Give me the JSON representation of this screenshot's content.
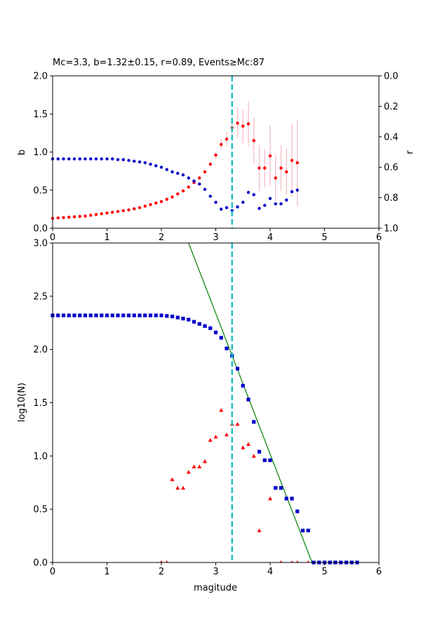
{
  "chart_data": [
    {
      "type": "scatter",
      "title": "Mc=3.3, b=1.32±0.15, r=0.89, Events≥Mc:87",
      "xlabel": "",
      "ylabel": "b",
      "ylabel_right": "r",
      "xlim": [
        0,
        6
      ],
      "ylim": [
        0,
        2.0
      ],
      "ylim_right": [
        1.0,
        0.0
      ],
      "xticks": [
        "0",
        "1",
        "2",
        "3",
        "4",
        "5",
        "6"
      ],
      "yticks": [
        "0.0",
        "0.5",
        "1.0",
        "1.5",
        "2.0"
      ],
      "yticks_right": [
        "0.0",
        "0.2",
        "0.4",
        "0.6",
        "0.8",
        "1.0"
      ],
      "grid": false,
      "mc_line": 3.3,
      "colors": {
        "b": "#ff0000",
        "r": "#0000cc",
        "err": "#f7b8c0",
        "mc": "#1fbfbf"
      },
      "series": [
        {
          "axis": "left",
          "x": [
            0.0,
            0.1,
            0.2,
            0.3,
            0.4,
            0.5,
            0.6,
            0.7,
            0.8,
            0.9,
            1.0,
            1.1,
            1.2,
            1.3,
            1.4,
            1.5,
            1.6,
            1.7,
            1.8,
            1.9,
            2.0,
            2.1,
            2.2,
            2.3,
            2.4,
            2.5,
            2.6,
            2.7,
            2.8,
            2.9,
            3.0,
            3.1,
            3.2,
            3.3,
            3.4,
            3.5,
            3.6,
            3.7,
            3.8,
            3.9,
            4.0,
            4.1,
            4.2,
            4.3,
            4.4,
            4.5
          ],
          "y": [
            0.13,
            0.135,
            0.14,
            0.145,
            0.15,
            0.155,
            0.16,
            0.17,
            0.18,
            0.19,
            0.2,
            0.21,
            0.22,
            0.23,
            0.24,
            0.255,
            0.27,
            0.29,
            0.31,
            0.33,
            0.35,
            0.38,
            0.41,
            0.45,
            0.49,
            0.54,
            0.6,
            0.66,
            0.74,
            0.84,
            0.96,
            1.1,
            1.17,
            1.32,
            1.38,
            1.34,
            1.37,
            1.15,
            0.79,
            0.79,
            0.95,
            0.66,
            0.79,
            0.74,
            0.89,
            0.86
          ],
          "err": [
            0,
            0,
            0,
            0,
            0,
            0,
            0,
            0,
            0,
            0,
            0,
            0,
            0,
            0,
            0,
            0,
            0,
            0,
            0,
            0,
            0,
            0,
            0,
            0,
            0,
            0,
            0,
            0,
            0,
            0,
            0.05,
            0.07,
            0.1,
            0.15,
            0.2,
            0.22,
            0.3,
            0.3,
            0.3,
            0.25,
            0.4,
            0.3,
            0.3,
            0.3,
            0.48,
            0.57
          ]
        },
        {
          "axis": "right",
          "x": [
            0.0,
            0.1,
            0.2,
            0.3,
            0.4,
            0.5,
            0.6,
            0.7,
            0.8,
            0.9,
            1.0,
            1.1,
            1.2,
            1.3,
            1.4,
            1.5,
            1.6,
            1.7,
            1.8,
            1.9,
            2.0,
            2.1,
            2.2,
            2.3,
            2.4,
            2.5,
            2.6,
            2.7,
            2.8,
            2.9,
            3.0,
            3.1,
            3.2,
            3.3,
            3.4,
            3.5,
            3.6,
            3.7,
            3.8,
            3.9,
            4.0,
            4.1,
            4.2,
            4.3,
            4.4,
            4.5
          ],
          "y": [
            0.545,
            0.545,
            0.545,
            0.545,
            0.545,
            0.545,
            0.545,
            0.545,
            0.545,
            0.545,
            0.545,
            0.545,
            0.55,
            0.55,
            0.555,
            0.56,
            0.565,
            0.57,
            0.58,
            0.59,
            0.6,
            0.615,
            0.63,
            0.64,
            0.65,
            0.67,
            0.69,
            0.71,
            0.745,
            0.79,
            0.83,
            0.875,
            0.865,
            0.885,
            0.86,
            0.83,
            0.765,
            0.78,
            0.87,
            0.85,
            0.805,
            0.84,
            0.84,
            0.815,
            0.76,
            0.75
          ]
        }
      ]
    },
    {
      "type": "scatter",
      "title": "",
      "xlabel": "magitude",
      "ylabel": "log10(N)",
      "xlim": [
        0,
        6
      ],
      "ylim": [
        0,
        3.0
      ],
      "xticks": [
        "0",
        "1",
        "2",
        "3",
        "4",
        "5",
        "6"
      ],
      "yticks": [
        "0.0",
        "0.5",
        "1.0",
        "1.5",
        "2.0",
        "2.5",
        "3.0"
      ],
      "grid": false,
      "mc_line": 3.3,
      "colors": {
        "cumulative": "#0000cc",
        "noncumulative": "#ff0000",
        "fit": "#008000",
        "mc": "#1fbfbf"
      },
      "fit_line": {
        "x": [
          2.5,
          4.77
        ],
        "y": [
          3.0,
          0.0
        ]
      },
      "series": [
        {
          "marker": "square",
          "x": [
            0.0,
            0.1,
            0.2,
            0.3,
            0.4,
            0.5,
            0.6,
            0.7,
            0.8,
            0.9,
            1.0,
            1.1,
            1.2,
            1.3,
            1.4,
            1.5,
            1.6,
            1.7,
            1.8,
            1.9,
            2.0,
            2.1,
            2.2,
            2.3,
            2.4,
            2.5,
            2.6,
            2.7,
            2.8,
            2.9,
            3.0,
            3.1,
            3.2,
            3.3,
            3.4,
            3.5,
            3.6,
            3.7,
            3.8,
            3.9,
            4.0,
            4.1,
            4.2,
            4.3,
            4.4,
            4.5,
            4.6,
            4.7,
            4.8,
            4.9,
            5.0,
            5.1,
            5.2,
            5.3,
            5.4,
            5.5,
            5.6
          ],
          "y": [
            2.32,
            2.32,
            2.32,
            2.32,
            2.32,
            2.32,
            2.32,
            2.32,
            2.32,
            2.32,
            2.32,
            2.32,
            2.32,
            2.32,
            2.32,
            2.32,
            2.32,
            2.32,
            2.32,
            2.32,
            2.32,
            2.315,
            2.31,
            2.3,
            2.29,
            2.28,
            2.26,
            2.24,
            2.22,
            2.2,
            2.16,
            2.11,
            2.01,
            1.94,
            1.82,
            1.66,
            1.53,
            1.32,
            1.04,
            0.96,
            0.96,
            0.7,
            0.7,
            0.6,
            0.6,
            0.48,
            0.3,
            0.3,
            0.0,
            0.0,
            0.0,
            0.0,
            0.0,
            0.0,
            0.0,
            0.0,
            0.0
          ]
        },
        {
          "marker": "triangle",
          "x": [
            2.0,
            2.1,
            2.2,
            2.3,
            2.4,
            2.5,
            2.6,
            2.7,
            2.8,
            2.9,
            3.0,
            3.1,
            3.2,
            3.3,
            3.4,
            3.5,
            3.6,
            3.7,
            3.8,
            4.0,
            4.2,
            4.4,
            4.5,
            4.7
          ],
          "y": [
            0.0,
            0.0,
            0.78,
            0.7,
            0.7,
            0.85,
            0.9,
            0.9,
            0.95,
            1.15,
            1.18,
            1.43,
            1.2,
            1.3,
            1.3,
            1.08,
            1.11,
            1.0,
            0.3,
            0.6,
            0.0,
            0.0,
            0.0,
            0.0
          ]
        }
      ]
    }
  ]
}
